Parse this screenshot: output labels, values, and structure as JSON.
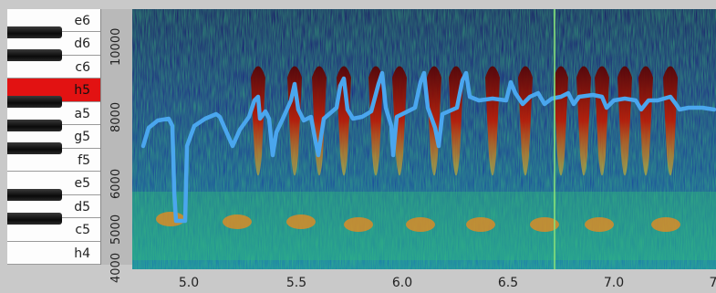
{
  "keyboard": {
    "keys": [
      {
        "note": "e6",
        "active": false
      },
      {
        "note": "d6",
        "active": false
      },
      {
        "note": "c6",
        "active": false
      },
      {
        "note": "h5",
        "active": true
      },
      {
        "note": "a5",
        "active": false
      },
      {
        "note": "g5",
        "active": false
      },
      {
        "note": "f5",
        "active": false
      },
      {
        "note": "e5",
        "active": false
      },
      {
        "note": "d5",
        "active": false
      },
      {
        "note": "c5",
        "active": false
      },
      {
        "note": "h4",
        "active": false
      }
    ]
  },
  "freq_axis": {
    "labels": [
      "10000",
      "8000",
      "6000",
      "5000",
      "4000"
    ]
  },
  "time_axis": {
    "labels": [
      "5.0",
      "5.5",
      "6.0",
      "6.5",
      "7.0",
      "7"
    ]
  },
  "colors": {
    "pitch_curve": "#4aa6ee",
    "cursor": "#86e07a",
    "active_key": "#e21212"
  }
}
